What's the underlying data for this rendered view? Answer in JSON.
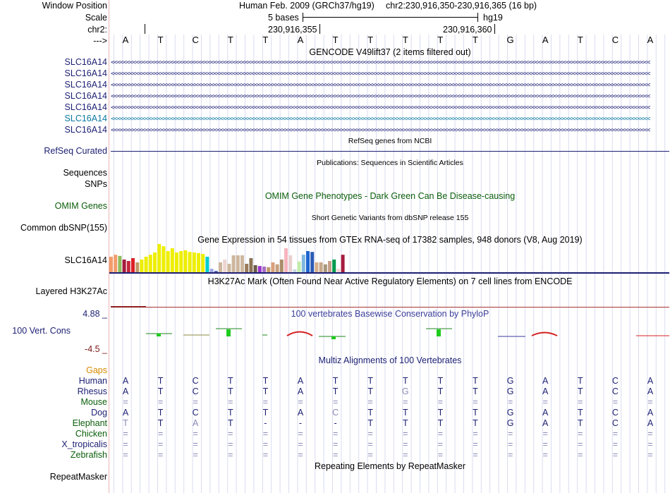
{
  "header": {
    "window_position_label": "Window Position",
    "scale_label": "Scale",
    "chr_label": "chr2:",
    "arrow_label": "--->",
    "assembly": "Human Feb. 2009 (GRCh37/hg19)",
    "position": "chr2:230,916,350-230,916,365 (16 bp)",
    "scale_text": "5 bases",
    "scale_db": "hg19",
    "coord_1": "230,916,355",
    "coord_2": "230,916,360"
  },
  "bases": [
    "A",
    "T",
    "C",
    "T",
    "T",
    "A",
    "T",
    "T",
    "T",
    "T",
    "T",
    "G",
    "A",
    "T",
    "C",
    "A"
  ],
  "gencode": {
    "title": "GENCODE V49lift37 (2 items filtered out)",
    "genes": [
      "SLC16A14",
      "SLC16A14",
      "SLC16A14",
      "SLC16A14",
      "SLC16A14",
      "SLC16A14",
      "SLC16A14"
    ],
    "strand_glyphs": "<<<<<<<<<<<<<<<<<<<<<<<<<<<<<<<<<<<<<<<<<<<<<<<<<<<<<<<<<<<<<<<<<<<<<<<<<<<<<<<<<<<<<<<<<<<<<<<<<<<<<<<<<<<<<<<<<<<<<<<<<<<<<<<<<<<<<<<<<<<<<<<<<<<<<<<<<<<<<<<<<<<<<<<<<<<<<"
  },
  "refseq": {
    "title": "RefSeq genes from NCBI",
    "label": "RefSeq Curated"
  },
  "publications": {
    "title": "Publications: Sequences in Scientific Articles",
    "label1": "Sequences",
    "label2": "SNPs"
  },
  "omim": {
    "title": "OMIM Gene Phenotypes - Dark Green Can Be Disease-causing",
    "label": "OMIM Genes"
  },
  "dbsnp": {
    "title": "Short Genetic Variants from dbSNP release 155",
    "label": "Common dbSNP(155)"
  },
  "gtex": {
    "title": "Gene Expression in 54 tissues from GTEx RNA-seq of 17382 samples, 948 donors (V8, Aug 2019)",
    "label": "SLC16A14",
    "bars": [
      {
        "v": 0.55,
        "c": "#f39c6b"
      },
      {
        "v": 0.62,
        "c": "#f39c6b"
      },
      {
        "v": 0.58,
        "c": "#8fbc5d"
      },
      {
        "v": 0.45,
        "c": "#a51c3f"
      },
      {
        "v": 0.4,
        "c": "#c4283d"
      },
      {
        "v": 0.5,
        "c": "#dd2026"
      },
      {
        "v": 0.35,
        "c": "#c19a6b"
      },
      {
        "v": 0.45,
        "c": "#eeee00"
      },
      {
        "v": 0.55,
        "c": "#eeee00"
      },
      {
        "v": 0.62,
        "c": "#eeee00"
      },
      {
        "v": 0.7,
        "c": "#eeee00"
      },
      {
        "v": 1.0,
        "c": "#eeee00"
      },
      {
        "v": 0.92,
        "c": "#eeee00"
      },
      {
        "v": 0.75,
        "c": "#eeee00"
      },
      {
        "v": 0.85,
        "c": "#eeee00"
      },
      {
        "v": 0.7,
        "c": "#eeee00"
      },
      {
        "v": 0.75,
        "c": "#eeee00"
      },
      {
        "v": 0.78,
        "c": "#eeee00"
      },
      {
        "v": 0.72,
        "c": "#eeee00"
      },
      {
        "v": 0.7,
        "c": "#eeee00"
      },
      {
        "v": 0.68,
        "c": "#eeee00"
      },
      {
        "v": 0.65,
        "c": "#eeee00"
      },
      {
        "v": 0.55,
        "c": "#00cdd1"
      },
      {
        "v": 0.12,
        "c": "#9aa4e2"
      },
      {
        "v": 0.05,
        "c": "#5a6ab0"
      },
      {
        "v": 0.35,
        "c": "#cdb79e"
      },
      {
        "v": 0.45,
        "c": "#eed5d2"
      },
      {
        "v": 0.3,
        "c": "#cdb79e"
      },
      {
        "v": 0.6,
        "c": "#cdb79e"
      },
      {
        "v": 0.6,
        "c": "#cdb79e"
      },
      {
        "v": 0.6,
        "c": "#cdb79e"
      },
      {
        "v": 0.3,
        "c": "#9b7a5b"
      },
      {
        "v": 0.5,
        "c": "#8b7355"
      },
      {
        "v": 0.25,
        "c": "#6a5a48"
      },
      {
        "v": 0.22,
        "c": "#9a32cd"
      },
      {
        "v": 0.2,
        "c": "#a66fc6"
      },
      {
        "v": 0.18,
        "c": "#c19a6b"
      },
      {
        "v": 0.35,
        "c": "#d7a07a"
      },
      {
        "v": 0.28,
        "c": "#c6a07e"
      },
      {
        "v": 0.45,
        "c": "#ab8e69"
      },
      {
        "v": 0.85,
        "c": "#f6b5be"
      },
      {
        "v": 0.6,
        "c": "#e8d0d0"
      },
      {
        "v": 0.1,
        "c": "#c6d8e0"
      },
      {
        "v": 0.38,
        "c": "#c1ecaa"
      },
      {
        "v": 0.62,
        "c": "#7fb8e0"
      },
      {
        "v": 0.75,
        "c": "#1e66d0"
      },
      {
        "v": 0.72,
        "c": "#2b5bb5"
      },
      {
        "v": 0.35,
        "c": "#d7b08a"
      },
      {
        "v": 0.35,
        "c": "#c8a98a"
      },
      {
        "v": 0.28,
        "c": "#a8967a"
      },
      {
        "v": 0.4,
        "c": "#c6a08a"
      },
      {
        "v": 0.45,
        "c": "#009a4e"
      },
      {
        "v": 0.12,
        "c": "#f2d6d0"
      },
      {
        "v": 0.62,
        "c": "#a51c3f"
      }
    ]
  },
  "h3k27ac": {
    "title": "H3K27Ac Mark (Often Found Near Active Regulatory Elements) on 7 cell lines from ENCODE",
    "label": "Layered H3K27Ac"
  },
  "phylop": {
    "title": "100 vertebrates Basewise Conservation by PhyloP",
    "label": "100 Vert. Cons",
    "max": "4.88 _",
    "min": "-4.5 _"
  },
  "multiz": {
    "title": "Multiz Alignments of 100 Vertebrates",
    "gaps_label": "Gaps",
    "species": [
      {
        "name": "Human",
        "seq": [
          "A",
          "T",
          "C",
          "T",
          "T",
          "A",
          "T",
          "T",
          "T",
          "T",
          "T",
          "G",
          "A",
          "T",
          "C",
          "A"
        ]
      },
      {
        "name": "Rhesus",
        "seq": [
          "A",
          "T",
          "C",
          "T",
          "T",
          "A",
          "T",
          "T",
          "G",
          "T",
          "T",
          "G",
          "A",
          "T",
          "C",
          "A"
        ]
      },
      {
        "name": "Mouse",
        "seq": [
          "=",
          "=",
          "=",
          "=",
          "=",
          "=",
          "=",
          "=",
          "=",
          "=",
          "=",
          "=",
          "=",
          "=",
          "=",
          "="
        ]
      },
      {
        "name": "Dog",
        "seq": [
          "A",
          "T",
          "C",
          "T",
          "T",
          "A",
          "C",
          "T",
          "T",
          "T",
          "T",
          "G",
          "A",
          "T",
          "C",
          "A"
        ]
      },
      {
        "name": "Elephant",
        "seq": [
          "T",
          "T",
          "A",
          "T",
          "-",
          "-",
          "-",
          "T",
          "T",
          "T",
          "T",
          "G",
          "A",
          "T",
          "C",
          "A"
        ]
      },
      {
        "name": "Chicken",
        "seq": [
          "=",
          "=",
          "=",
          "=",
          "=",
          "=",
          "=",
          "=",
          "=",
          "=",
          "=",
          "=",
          "=",
          "=",
          "=",
          "="
        ]
      },
      {
        "name": "X_tropicalis",
        "seq": [
          "=",
          "=",
          "=",
          "=",
          "=",
          "=",
          "=",
          "=",
          "=",
          "=",
          "=",
          "=",
          "=",
          "=",
          "=",
          "="
        ]
      },
      {
        "name": "Zebrafish",
        "seq": [
          "=",
          "=",
          "=",
          "=",
          "=",
          "=",
          "=",
          "=",
          "=",
          "=",
          "=",
          "=",
          "=",
          "=",
          "=",
          "="
        ]
      }
    ]
  },
  "rmsk": {
    "title": "Repeating Elements by RepeatMasker",
    "label": "RepeatMasker"
  }
}
